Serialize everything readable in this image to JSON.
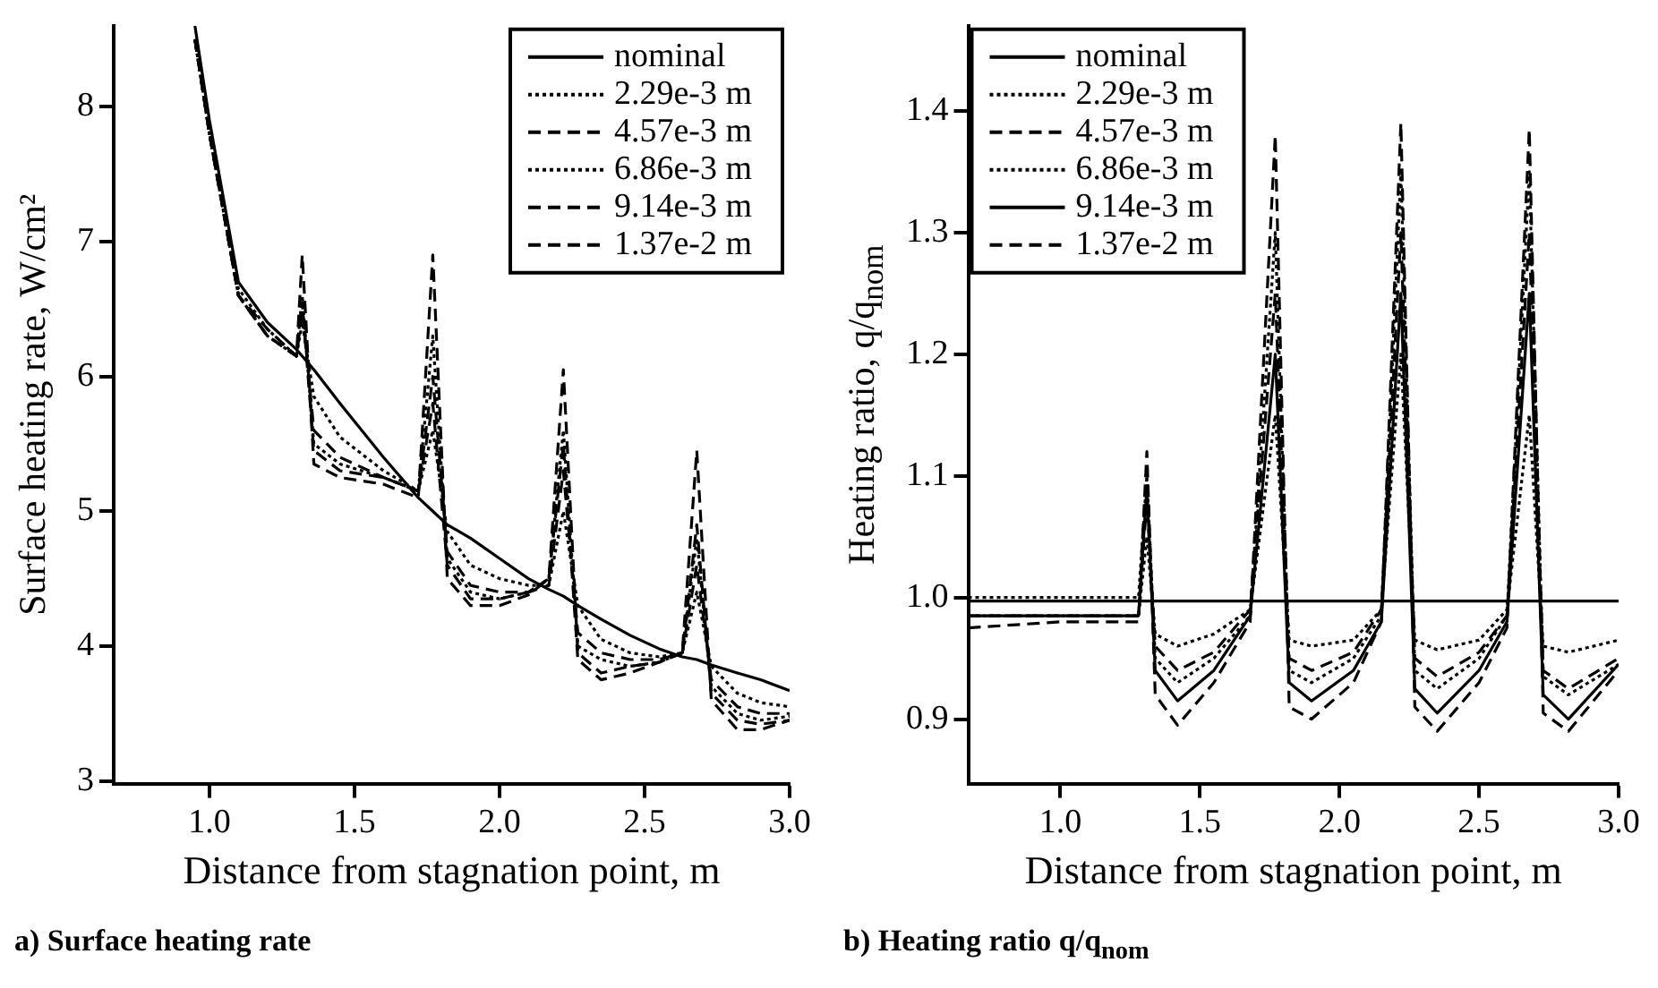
{
  "chart_data": [
    {
      "type": "line",
      "title": "a) Surface heating rate",
      "xlabel": "Distance from stagnation point, m",
      "ylabel": "Surface heating rate, W/cm²",
      "xlim": [
        0.67,
        3.0
      ],
      "ylim": [
        2.98,
        8.6
      ],
      "xticks": [
        {
          "value": 1,
          "label": "1.0"
        },
        {
          "value": 1.5,
          "label": "1.5"
        },
        {
          "value": 2,
          "label": "2.0"
        },
        {
          "value": 2.5,
          "label": "2.5"
        },
        {
          "value": 3,
          "label": "3.0"
        }
      ],
      "yticks": [
        3,
        4,
        5,
        6,
        7,
        8
      ],
      "legend": "top right",
      "series": [
        {
          "name": "nominal",
          "color": "#000000",
          "line_style": "solid",
          "x": [
            0.95,
            1.0,
            1.1,
            1.2,
            1.3,
            1.32,
            1.36,
            1.45,
            1.6,
            1.72,
            1.77,
            1.82,
            1.9,
            2.0,
            2.1,
            2.17,
            2.22,
            2.27,
            2.35,
            2.45,
            2.55,
            2.63,
            2.68,
            2.73,
            2.82,
            2.9,
            3.0
          ],
          "values": [
            8.6,
            7.9,
            6.7,
            6.4,
            6.2,
            6.15,
            6.05,
            5.8,
            5.4,
            5.1,
            5.0,
            4.9,
            4.8,
            4.65,
            4.5,
            4.42,
            4.37,
            4.3,
            4.2,
            4.08,
            3.98,
            3.92,
            3.9,
            3.86,
            3.8,
            3.75,
            3.67
          ]
        },
        {
          "name": "2.29e-3 m",
          "color": "#000000",
          "line_style": "dotted",
          "x": [
            0.95,
            1.0,
            1.1,
            1.2,
            1.3,
            1.32,
            1.36,
            1.45,
            1.6,
            1.72,
            1.77,
            1.82,
            1.9,
            2.0,
            2.1,
            2.17,
            2.22,
            2.27,
            2.35,
            2.45,
            2.55,
            2.63,
            2.68,
            2.73,
            2.82,
            2.9,
            3.0
          ],
          "values": [
            8.5,
            7.8,
            6.65,
            6.35,
            6.15,
            6.4,
            5.85,
            5.55,
            5.3,
            5.15,
            5.6,
            4.85,
            4.6,
            4.5,
            4.45,
            4.45,
            5.0,
            4.3,
            4.05,
            3.95,
            3.92,
            3.95,
            4.4,
            3.85,
            3.65,
            3.58,
            3.55
          ]
        },
        {
          "name": "4.57e-3 m",
          "color": "#000000",
          "line_style": "dashed",
          "x": [
            0.95,
            1.0,
            1.1,
            1.2,
            1.3,
            1.32,
            1.36,
            1.45,
            1.6,
            1.72,
            1.77,
            1.82,
            1.9,
            2.0,
            2.1,
            2.17,
            2.22,
            2.27,
            2.35,
            2.45,
            2.55,
            2.63,
            2.68,
            2.73,
            2.82,
            2.9,
            3.0
          ],
          "values": [
            8.5,
            7.8,
            6.6,
            6.35,
            6.15,
            6.5,
            5.6,
            5.4,
            5.25,
            5.15,
            6.0,
            4.7,
            4.45,
            4.4,
            4.4,
            4.45,
            5.3,
            4.1,
            3.95,
            3.9,
            3.9,
            3.95,
            4.6,
            3.75,
            3.55,
            3.5,
            3.5
          ]
        },
        {
          "name": "6.86e-3 m",
          "color": "#000000",
          "line_style": "dotted",
          "x": [
            0.95,
            1.0,
            1.1,
            1.2,
            1.3,
            1.32,
            1.36,
            1.45,
            1.6,
            1.72,
            1.77,
            1.82,
            1.9,
            2.0,
            2.1,
            2.17,
            2.22,
            2.27,
            2.35,
            2.45,
            2.55,
            2.63,
            2.68,
            2.73,
            2.82,
            2.9,
            3.0
          ],
          "values": [
            8.5,
            7.8,
            6.6,
            6.3,
            6.15,
            6.6,
            5.5,
            5.35,
            5.25,
            5.15,
            6.3,
            4.65,
            4.4,
            4.35,
            4.4,
            4.5,
            5.6,
            4.0,
            3.9,
            3.85,
            3.88,
            3.95,
            4.8,
            3.7,
            3.5,
            3.45,
            3.48
          ]
        },
        {
          "name": "9.14e-3 m",
          "color": "#000000",
          "line_style": "dashed",
          "x": [
            0.95,
            1.0,
            1.1,
            1.2,
            1.3,
            1.32,
            1.36,
            1.45,
            1.6,
            1.72,
            1.77,
            1.82,
            1.9,
            2.0,
            2.1,
            2.17,
            2.22,
            2.27,
            2.35,
            2.45,
            2.55,
            2.63,
            2.68,
            2.73,
            2.82,
            2.9,
            3.0
          ],
          "values": [
            8.5,
            7.8,
            6.6,
            6.3,
            6.15,
            6.55,
            5.45,
            5.3,
            5.25,
            5.15,
            5.8,
            4.6,
            4.35,
            4.35,
            4.4,
            4.5,
            6.05,
            3.95,
            3.8,
            3.85,
            3.88,
            3.95,
            4.9,
            3.65,
            3.45,
            3.42,
            3.45
          ]
        },
        {
          "name": "1.37e-2 m",
          "color": "#000000",
          "line_style": "dashed",
          "x": [
            0.95,
            1.0,
            1.1,
            1.2,
            1.3,
            1.32,
            1.36,
            1.45,
            1.6,
            1.72,
            1.77,
            1.82,
            1.9,
            2.0,
            2.1,
            2.17,
            2.22,
            2.27,
            2.35,
            2.45,
            2.55,
            2.63,
            2.68,
            2.73,
            2.82,
            2.9,
            3.0
          ],
          "values": [
            8.5,
            7.8,
            6.6,
            6.3,
            6.15,
            6.9,
            5.35,
            5.25,
            5.2,
            5.1,
            6.9,
            4.5,
            4.3,
            4.3,
            4.38,
            4.5,
            5.5,
            3.9,
            3.75,
            3.8,
            3.88,
            3.95,
            5.45,
            3.6,
            3.38,
            3.38,
            3.45
          ]
        }
      ]
    },
    {
      "type": "line",
      "title": "b) Heating ratio q/q$_{nom}$",
      "xlabel": "Distance from stagnation point, m",
      "ylabel": "Heating ratio, q/q$_{nom}$",
      "xlim": [
        0.67,
        3.0
      ],
      "ylim": [
        0.847,
        1.47
      ],
      "xticks": [
        {
          "value": 1,
          "label": "1.0"
        },
        {
          "value": 1.5,
          "label": "1.5"
        },
        {
          "value": 2,
          "label": "2.0"
        },
        {
          "value": 2.5,
          "label": "2.5"
        },
        {
          "value": 3,
          "label": "3.0"
        }
      ],
      "yticks": [
        0.9,
        {
          "value": 1,
          "label": "1.0"
        },
        1.1,
        1.2,
        1.3,
        1.4
      ],
      "legend": "top left",
      "series": [
        {
          "name": "nominal",
          "color": "#000000",
          "line_style": "solid",
          "x": [
            0.67,
            3.0
          ],
          "values": [
            0.997,
            0.997
          ]
        },
        {
          "name": "2.29e-3 m",
          "color": "#000000",
          "line_style": "dotted",
          "x": [
            0.67,
            1.0,
            1.28,
            1.31,
            1.34,
            1.42,
            1.55,
            1.68,
            1.77,
            1.82,
            1.9,
            2.05,
            2.15,
            2.22,
            2.27,
            2.35,
            2.5,
            2.6,
            2.68,
            2.73,
            2.82,
            3.0
          ],
          "values": [
            0.985,
            0.985,
            0.985,
            1.05,
            0.97,
            0.96,
            0.97,
            0.99,
            1.15,
            0.965,
            0.96,
            0.965,
            0.99,
            1.2,
            0.965,
            0.957,
            0.965,
            0.99,
            1.15,
            0.96,
            0.955,
            0.965
          ]
        },
        {
          "name": "4.57e-3 m",
          "color": "#000000",
          "line_style": "dashed",
          "x": [
            0.67,
            1.0,
            1.28,
            1.31,
            1.34,
            1.42,
            1.55,
            1.68,
            1.77,
            1.82,
            1.9,
            2.05,
            2.15,
            2.22,
            2.27,
            2.35,
            2.5,
            2.6,
            2.68,
            2.73,
            2.82,
            3.0
          ],
          "values": [
            0.985,
            0.985,
            0.985,
            1.08,
            0.96,
            0.94,
            0.955,
            0.99,
            1.25,
            0.95,
            0.94,
            0.955,
            0.99,
            1.3,
            0.95,
            0.935,
            0.955,
            0.985,
            1.3,
            0.94,
            0.925,
            0.95
          ]
        },
        {
          "name": "6.86e-3 m",
          "color": "#000000",
          "line_style": "dotted",
          "x": [
            0.67,
            1.0,
            1.28,
            1.31,
            1.34,
            1.42,
            1.55,
            1.68,
            1.77,
            1.82,
            1.9,
            2.05,
            2.15,
            2.22,
            2.27,
            2.35,
            2.5,
            2.6,
            2.68,
            2.73,
            2.82,
            3.0
          ],
          "values": [
            1.0,
            1.0,
            1.0,
            1.1,
            0.95,
            0.93,
            0.95,
            0.985,
            1.3,
            0.94,
            0.93,
            0.95,
            0.985,
            1.35,
            0.94,
            0.925,
            0.95,
            0.985,
            1.35,
            0.935,
            0.92,
            0.945
          ]
        },
        {
          "name": "9.14e-3 m",
          "color": "#000000",
          "line_style": "solid",
          "x": [
            0.67,
            1.0,
            1.28,
            1.31,
            1.34,
            1.42,
            1.55,
            1.68,
            1.77,
            1.82,
            1.9,
            2.05,
            2.15,
            2.22,
            2.27,
            2.35,
            2.5,
            2.6,
            2.68,
            2.73,
            2.82,
            3.0
          ],
          "values": [
            0.985,
            0.985,
            0.985,
            1.09,
            0.94,
            0.915,
            0.94,
            0.985,
            1.2,
            0.93,
            0.915,
            0.94,
            0.98,
            1.25,
            0.925,
            0.905,
            0.94,
            0.98,
            1.25,
            0.92,
            0.9,
            0.945
          ]
        },
        {
          "name": "1.37e-2 m",
          "color": "#000000",
          "line_style": "dashed",
          "x": [
            0.67,
            1.0,
            1.28,
            1.31,
            1.34,
            1.42,
            1.55,
            1.68,
            1.77,
            1.82,
            1.9,
            2.05,
            2.15,
            2.22,
            2.27,
            2.35,
            2.5,
            2.6,
            2.68,
            2.73,
            2.82,
            3.0
          ],
          "values": [
            0.975,
            0.98,
            0.98,
            1.12,
            0.92,
            0.895,
            0.93,
            0.98,
            1.38,
            0.91,
            0.9,
            0.93,
            0.98,
            1.39,
            0.91,
            0.89,
            0.93,
            0.975,
            1.385,
            0.905,
            0.89,
            0.94
          ]
        }
      ]
    }
  ]
}
